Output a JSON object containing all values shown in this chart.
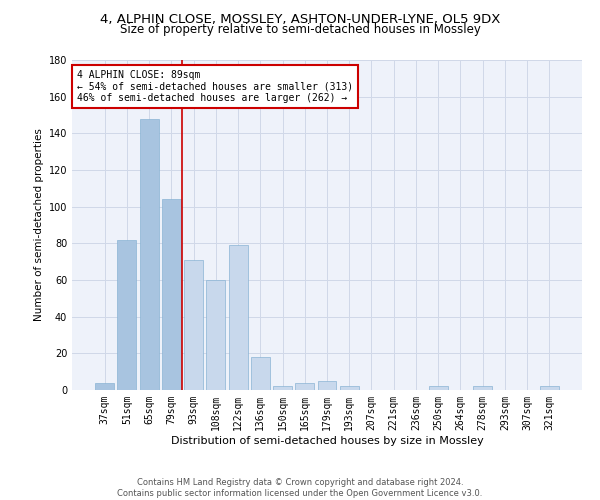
{
  "title": "4, ALPHIN CLOSE, MOSSLEY, ASHTON-UNDER-LYNE, OL5 9DX",
  "subtitle": "Size of property relative to semi-detached houses in Mossley",
  "xlabel": "Distribution of semi-detached houses by size in Mossley",
  "ylabel": "Number of semi-detached properties",
  "categories": [
    "37sqm",
    "51sqm",
    "65sqm",
    "79sqm",
    "93sqm",
    "108sqm",
    "122sqm",
    "136sqm",
    "150sqm",
    "165sqm",
    "179sqm",
    "193sqm",
    "207sqm",
    "221sqm",
    "236sqm",
    "250sqm",
    "264sqm",
    "278sqm",
    "293sqm",
    "307sqm",
    "321sqm"
  ],
  "values": [
    4,
    82,
    148,
    104,
    71,
    60,
    79,
    18,
    2,
    4,
    5,
    2,
    0,
    0,
    0,
    2,
    0,
    2,
    0,
    0,
    2
  ],
  "bar_color_smaller": "#a8c4e0",
  "bar_color_larger": "#c8d8ec",
  "vline_x": 3.5,
  "annotation_text": "4 ALPHIN CLOSE: 89sqm\n← 54% of semi-detached houses are smaller (313)\n46% of semi-detached houses are larger (262) →",
  "annotation_box_color": "#ffffff",
  "annotation_box_edge": "#cc0000",
  "vline_color": "#cc0000",
  "ylim": [
    0,
    180
  ],
  "yticks": [
    0,
    20,
    40,
    60,
    80,
    100,
    120,
    140,
    160,
    180
  ],
  "grid_color": "#d0d8e8",
  "background_color": "#eef2fa",
  "footer1": "Contains HM Land Registry data © Crown copyright and database right 2024.",
  "footer2": "Contains public sector information licensed under the Open Government Licence v3.0.",
  "title_fontsize": 9.5,
  "subtitle_fontsize": 8.5,
  "xlabel_fontsize": 8,
  "ylabel_fontsize": 7.5,
  "tick_fontsize": 7,
  "annotation_fontsize": 7,
  "footer_fontsize": 6
}
